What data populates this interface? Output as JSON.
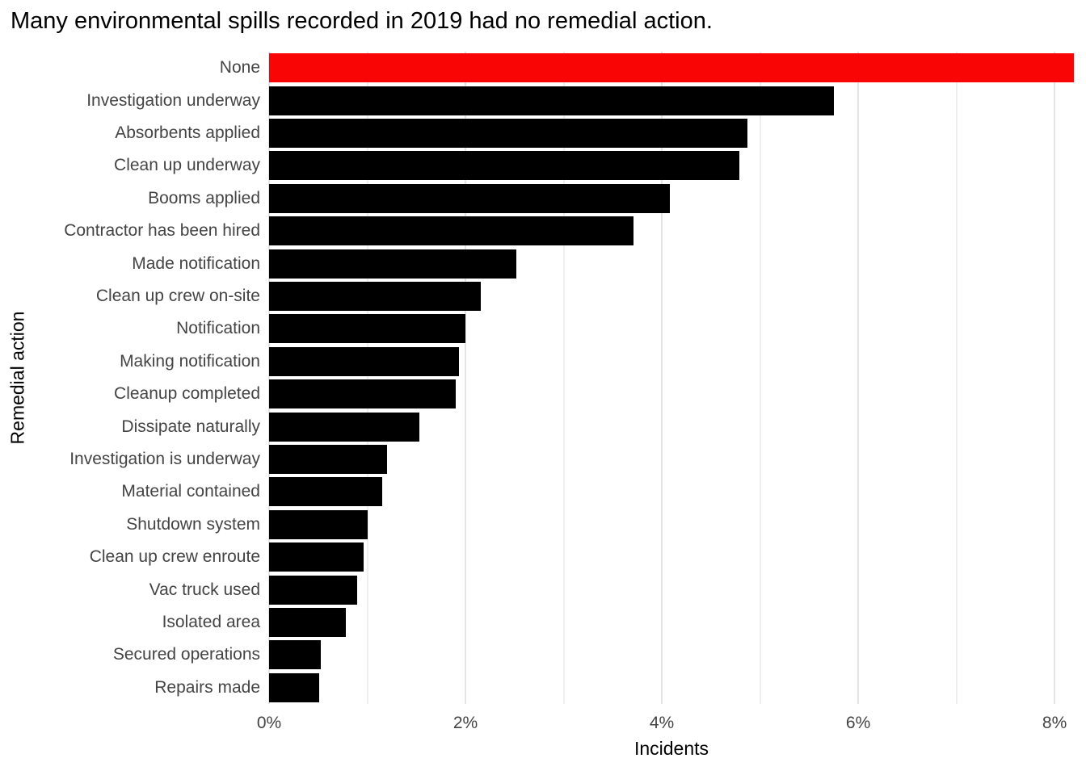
{
  "chart_data": {
    "type": "bar",
    "orientation": "horizontal",
    "title": "Many environmental spills recorded in 2019 had no remedial action.",
    "xlabel": "Incidents",
    "ylabel": "Remedial action",
    "categories": [
      "None",
      "Investigation underway",
      "Absorbents applied",
      "Clean up underway",
      "Booms applied",
      "Contractor has been hired",
      "Made notification",
      "Clean up crew on-site",
      "Notification",
      "Making notification",
      "Cleanup completed",
      "Dissipate naturally",
      "Investigation is underway",
      "Material contained",
      "Shutdown system",
      "Clean up crew enroute",
      "Vac truck used",
      "Isolated area",
      "Secured operations",
      "Repairs made"
    ],
    "values": [
      8.2,
      5.75,
      4.87,
      4.79,
      4.08,
      3.71,
      2.52,
      2.16,
      2.0,
      1.93,
      1.9,
      1.53,
      1.2,
      1.15,
      1.0,
      0.96,
      0.9,
      0.78,
      0.53,
      0.51
    ],
    "unit": "%",
    "highlight_category": "None",
    "bar_colors": {
      "default": "#000000",
      "highlight": "#fa0505"
    },
    "x_ticks": [
      {
        "value": 0,
        "label": "0%"
      },
      {
        "value": 2,
        "label": "2%"
      },
      {
        "value": 4,
        "label": "4%"
      },
      {
        "value": 6,
        "label": "6%"
      },
      {
        "value": 8,
        "label": "8%"
      }
    ],
    "xlim": [
      0,
      8.32
    ],
    "grid": {
      "interval": 1,
      "on": true
    },
    "legend": "none"
  },
  "colors": {
    "background": "#ffffff",
    "axis_text": "#444444",
    "title_text": "#000000",
    "gridline_major": "#e4e4e4",
    "gridline_minor": "#efefef"
  }
}
